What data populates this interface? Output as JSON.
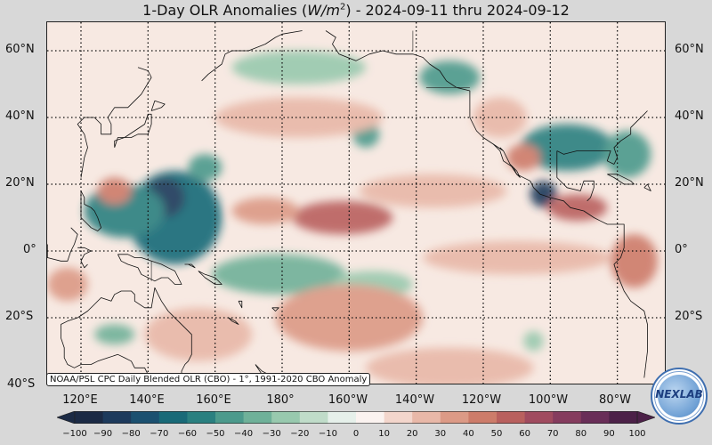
{
  "title": {
    "prefix": "1-Day OLR Anomalies (",
    "unit_base": "W/m",
    "unit_exp": "2",
    "suffix": ") - 2024-09-11 thru 2024-09-12"
  },
  "lat_labels": [
    "60°N",
    "40°N",
    "20°N",
    "0°",
    "20°S",
    "40°S"
  ],
  "lon_labels": [
    "120°E",
    "140°E",
    "160°E",
    "180°",
    "160°W",
    "140°W",
    "120°W",
    "100°W",
    "80°W"
  ],
  "credit": "NOAA/PSL CPC Daily Blended OLR (CBO) - 1°, 1991-2020 CBO Anomaly",
  "colorbar": {
    "ticks": [
      "−100",
      "−90",
      "−80",
      "−70",
      "−60",
      "−50",
      "−40",
      "−30",
      "−20",
      "−10",
      "0",
      "10",
      "20",
      "30",
      "40",
      "50",
      "60",
      "70",
      "80",
      "90",
      "100"
    ],
    "colors": [
      "#1b2a45",
      "#1d3a5c",
      "#1b5070",
      "#196a78",
      "#2a8080",
      "#4c9a8c",
      "#6fb199",
      "#98c9ae",
      "#c0dcc9",
      "#e6f0ea",
      "#fbf3f0",
      "#f3d6cc",
      "#e8b8a8",
      "#dc9a86",
      "#cd7c6a",
      "#b9605e",
      "#a04b5f",
      "#853c5e",
      "#692e58",
      "#4c2148"
    ],
    "min": -100,
    "max": 100
  },
  "map_extent": {
    "lon_min": 110,
    "lon_max": 290,
    "lat_min": -40,
    "lat_max": 67
  },
  "anomaly_features": [
    {
      "lon": 148,
      "lat": 10,
      "rx": 14,
      "ry": 14,
      "value": -70
    },
    {
      "lon": 145,
      "lat": 16,
      "rx": 6,
      "ry": 6,
      "value": -85
    },
    {
      "lon": 133,
      "lat": 12,
      "rx": 12,
      "ry": 8,
      "value": -55
    },
    {
      "lon": 157,
      "lat": 25,
      "rx": 5,
      "ry": 4,
      "value": -50
    },
    {
      "lon": 179,
      "lat": -7,
      "rx": 20,
      "ry": 6,
      "value": -35
    },
    {
      "lon": 207,
      "lat": -10,
      "rx": 12,
      "ry": 4,
      "value": -30
    },
    {
      "lon": 185,
      "lat": 55,
      "rx": 20,
      "ry": 5,
      "value": -30
    },
    {
      "lon": 230,
      "lat": 52,
      "rx": 9,
      "ry": 5,
      "value": -50
    },
    {
      "lon": 205,
      "lat": 35,
      "rx": 4,
      "ry": 4,
      "value": -50
    },
    {
      "lon": 265,
      "lat": 31,
      "rx": 14,
      "ry": 7,
      "value": -60
    },
    {
      "lon": 283,
      "lat": 29,
      "rx": 7,
      "ry": 7,
      "value": -50
    },
    {
      "lon": 258,
      "lat": 17,
      "rx": 4,
      "ry": 4,
      "value": -85
    },
    {
      "lon": 130,
      "lat": -25,
      "rx": 6,
      "ry": 3,
      "value": -40
    },
    {
      "lon": 255,
      "lat": -27,
      "rx": 3,
      "ry": 3,
      "value": -30
    },
    {
      "lon": 198,
      "lat": 10,
      "rx": 15,
      "ry": 5,
      "value": 55
    },
    {
      "lon": 175,
      "lat": 12,
      "rx": 10,
      "ry": 4,
      "value": 35
    },
    {
      "lon": 200,
      "lat": -20,
      "rx": 22,
      "ry": 10,
      "value": 30
    },
    {
      "lon": 155,
      "lat": -25,
      "rx": 16,
      "ry": 8,
      "value": 25
    },
    {
      "lon": 130,
      "lat": 18,
      "rx": 5,
      "ry": 4,
      "value": 45
    },
    {
      "lon": 225,
      "lat": 18,
      "rx": 22,
      "ry": 5,
      "value": 25
    },
    {
      "lon": 250,
      "lat": -2,
      "rx": 28,
      "ry": 5,
      "value": 20
    },
    {
      "lon": 268,
      "lat": 13,
      "rx": 9,
      "ry": 4,
      "value": 55
    },
    {
      "lon": 285,
      "lat": -3,
      "rx": 7,
      "ry": 8,
      "value": 40
    },
    {
      "lon": 252,
      "lat": 28,
      "rx": 5,
      "ry": 4,
      "value": 45
    },
    {
      "lon": 185,
      "lat": 40,
      "rx": 25,
      "ry": 6,
      "value": 20
    },
    {
      "lon": 245,
      "lat": 40,
      "rx": 8,
      "ry": 6,
      "value": 25
    },
    {
      "lon": 230,
      "lat": -35,
      "rx": 25,
      "ry": 6,
      "value": 20
    },
    {
      "lon": 116,
      "lat": -10,
      "rx": 6,
      "ry": 5,
      "value": 30
    }
  ],
  "coastlines": [
    [
      [
        120,
        22
      ],
      [
        121,
        28
      ],
      [
        122,
        31
      ],
      [
        121,
        35
      ],
      [
        119,
        38
      ],
      [
        121,
        40
      ],
      [
        124,
        40
      ],
      [
        126,
        38
      ],
      [
        126,
        35
      ],
      [
        129,
        35
      ],
      [
        129,
        38
      ],
      [
        128,
        40
      ],
      [
        130,
        43
      ],
      [
        134,
        43
      ],
      [
        138,
        47
      ],
      [
        141,
        52
      ],
      [
        140,
        54
      ],
      [
        137,
        55
      ]
    ],
    [
      [
        130,
        31
      ],
      [
        131,
        34
      ],
      [
        135,
        34
      ],
      [
        137,
        35
      ],
      [
        140,
        35
      ],
      [
        141,
        38
      ],
      [
        141,
        41
      ],
      [
        140,
        41
      ],
      [
        139,
        38
      ],
      [
        136,
        36
      ],
      [
        133,
        34
      ],
      [
        130,
        33
      ],
      [
        130,
        31
      ]
    ],
    [
      [
        141,
        42
      ],
      [
        144,
        43
      ],
      [
        145,
        44
      ],
      [
        142,
        45
      ],
      [
        141,
        42
      ]
    ],
    [
      [
        156,
        51
      ],
      [
        158,
        53
      ],
      [
        162,
        56
      ],
      [
        163,
        59
      ],
      [
        165,
        60
      ],
      [
        170,
        60
      ],
      [
        175,
        62
      ],
      [
        178,
        64
      ],
      [
        180,
        65
      ],
      [
        186,
        66
      ]
    ],
    [
      [
        193,
        66
      ],
      [
        196,
        64
      ],
      [
        195,
        62
      ],
      [
        197,
        59
      ],
      [
        202,
        57
      ],
      [
        206,
        59
      ],
      [
        210,
        60
      ],
      [
        214,
        59
      ],
      [
        219,
        59
      ],
      [
        222,
        58
      ],
      [
        224,
        56
      ],
      [
        227,
        54
      ],
      [
        229,
        51
      ],
      [
        232,
        49
      ],
      [
        236,
        48
      ],
      [
        236,
        43
      ],
      [
        236,
        40
      ],
      [
        238,
        36
      ],
      [
        240,
        34
      ],
      [
        243,
        32
      ],
      [
        245,
        30
      ],
      [
        246,
        27
      ],
      [
        249,
        25
      ],
      [
        250,
        23
      ],
      [
        254,
        21
      ],
      [
        255,
        19
      ],
      [
        257,
        17
      ],
      [
        260,
        16
      ],
      [
        264,
        15
      ],
      [
        266,
        13
      ],
      [
        270,
        12
      ],
      [
        273,
        10
      ],
      [
        275,
        9
      ],
      [
        277,
        8
      ],
      [
        280,
        8
      ],
      [
        282,
        8
      ],
      [
        282,
        4
      ],
      [
        282,
        1
      ],
      [
        281,
        -2
      ],
      [
        279,
        -4
      ],
      [
        280,
        -7
      ],
      [
        282,
        -12
      ],
      [
        284,
        -15
      ],
      [
        288,
        -18
      ],
      [
        289,
        -22
      ],
      [
        289,
        -30
      ],
      [
        288,
        -38
      ]
    ],
    [
      [
        243,
        32
      ],
      [
        246,
        30
      ],
      [
        248,
        26
      ],
      [
        250,
        24
      ],
      [
        251,
        22
      ],
      [
        250,
        23
      ],
      [
        248,
        26
      ],
      [
        246,
        30
      ],
      [
        245,
        31
      ]
    ],
    [
      [
        262,
        30
      ],
      [
        264,
        29
      ],
      [
        268,
        30
      ],
      [
        271,
        30
      ],
      [
        275,
        30
      ],
      [
        278,
        30
      ],
      [
        277,
        27
      ],
      [
        279,
        26
      ],
      [
        280,
        28
      ],
      [
        279,
        31
      ],
      [
        281,
        33
      ],
      [
        284,
        35
      ],
      [
        284,
        37
      ],
      [
        286,
        39
      ],
      [
        288,
        41
      ],
      [
        289,
        42
      ]
    ],
    [
      [
        262,
        30
      ],
      [
        262,
        26
      ],
      [
        262,
        22
      ],
      [
        265,
        19
      ],
      [
        269,
        18
      ],
      [
        270,
        21
      ],
      [
        273,
        21
      ],
      [
        273,
        19
      ],
      [
        272,
        16
      ],
      [
        271,
        15
      ]
    ],
    [
      [
        277,
        23
      ],
      [
        280,
        23
      ],
      [
        284,
        21
      ],
      [
        285,
        20
      ],
      [
        282,
        20
      ],
      [
        279,
        22
      ],
      [
        277,
        23
      ]
    ],
    [
      [
        288,
        19
      ],
      [
        289,
        20
      ],
      [
        290,
        18
      ],
      [
        288,
        19
      ]
    ],
    [
      [
        120,
        18
      ],
      [
        121,
        16
      ],
      [
        121,
        14
      ],
      [
        123,
        13
      ],
      [
        124,
        12
      ],
      [
        125,
        10
      ],
      [
        126,
        7
      ],
      [
        125,
        6
      ],
      [
        123,
        7
      ],
      [
        122,
        8
      ],
      [
        120,
        10
      ],
      [
        120,
        14
      ],
      [
        120,
        18
      ]
    ],
    [
      [
        117,
        7
      ],
      [
        119,
        5
      ],
      [
        118,
        2
      ],
      [
        117,
        0
      ],
      [
        116,
        -3
      ],
      [
        114,
        -3
      ],
      [
        110,
        -2
      ],
      [
        110,
        2
      ]
    ],
    [
      [
        119,
        1
      ],
      [
        121,
        1
      ],
      [
        123,
        0
      ],
      [
        121,
        -1
      ],
      [
        120,
        -3
      ],
      [
        121,
        -5
      ],
      [
        122,
        -4
      ]
    ],
    [
      [
        131,
        -1
      ],
      [
        134,
        -1
      ],
      [
        136,
        -2
      ],
      [
        138,
        -2
      ],
      [
        141,
        -3
      ],
      [
        144,
        -4
      ],
      [
        146,
        -5
      ],
      [
        148,
        -6
      ],
      [
        150,
        -10
      ],
      [
        148,
        -10
      ],
      [
        146,
        -8
      ],
      [
        144,
        -8
      ],
      [
        142,
        -9
      ],
      [
        140,
        -8
      ],
      [
        138,
        -7
      ],
      [
        137,
        -5
      ],
      [
        134,
        -4
      ],
      [
        132,
        -3
      ],
      [
        131,
        -1
      ]
    ],
    [
      [
        152,
        -4
      ],
      [
        154,
        -5
      ],
      [
        153,
        -4
      ],
      [
        151,
        -4
      ],
      [
        152,
        -4
      ]
    ],
    [
      [
        155,
        -6
      ],
      [
        157,
        -7
      ],
      [
        160,
        -8
      ],
      [
        162,
        -10
      ],
      [
        160,
        -10
      ],
      [
        157,
        -8
      ],
      [
        155,
        -6
      ]
    ],
    [
      [
        167,
        -15
      ],
      [
        168,
        -17
      ],
      [
        168,
        -15
      ],
      [
        167,
        -15
      ]
    ],
    [
      [
        164,
        -20
      ],
      [
        166,
        -21
      ],
      [
        167,
        -22
      ],
      [
        165,
        -21
      ],
      [
        164,
        -20
      ]
    ],
    [
      [
        177,
        -17
      ],
      [
        179,
        -17
      ],
      [
        178,
        -18
      ],
      [
        177,
        -17
      ]
    ],
    [
      [
        114,
        -22
      ],
      [
        116,
        -21
      ],
      [
        119,
        -20
      ],
      [
        122,
        -18
      ],
      [
        124,
        -16
      ],
      [
        126,
        -14
      ],
      [
        129,
        -15
      ],
      [
        130,
        -13
      ],
      [
        132,
        -12
      ],
      [
        135,
        -12
      ],
      [
        136,
        -13
      ],
      [
        136,
        -15
      ],
      [
        139,
        -17
      ],
      [
        141,
        -17
      ],
      [
        142,
        -11
      ],
      [
        143,
        -13
      ],
      [
        144,
        -15
      ],
      [
        146,
        -18
      ],
      [
        147,
        -19
      ],
      [
        149,
        -21
      ],
      [
        151,
        -23
      ],
      [
        153,
        -25
      ],
      [
        153,
        -28
      ],
      [
        153,
        -31
      ],
      [
        152,
        -33
      ],
      [
        151,
        -34
      ],
      [
        150,
        -36
      ],
      [
        150,
        -37
      ],
      [
        148,
        -38
      ],
      [
        146,
        -39
      ],
      [
        144,
        -38
      ],
      [
        142,
        -38
      ],
      [
        140,
        -37
      ],
      [
        139,
        -35
      ],
      [
        138,
        -35
      ],
      [
        136,
        -35
      ],
      [
        135,
        -33
      ],
      [
        133,
        -32
      ],
      [
        131,
        -31
      ],
      [
        128,
        -32
      ],
      [
        125,
        -33
      ],
      [
        123,
        -34
      ],
      [
        120,
        -34
      ],
      [
        118,
        -35
      ],
      [
        116,
        -34
      ],
      [
        115,
        -32
      ],
      [
        115,
        -29
      ],
      [
        114,
        -26
      ],
      [
        114,
        -22
      ]
    ],
    [
      [
        144,
        -41
      ],
      [
        146,
        -41
      ],
      [
        148,
        -41
      ],
      [
        148,
        -43
      ],
      [
        146,
        -43
      ],
      [
        145,
        -42
      ],
      [
        144,
        -41
      ]
    ],
    [
      [
        172,
        -34
      ],
      [
        174,
        -36
      ],
      [
        176,
        -37
      ],
      [
        178,
        -38
      ],
      [
        177,
        -39
      ],
      [
        175,
        -40
      ],
      [
        174,
        -39
      ],
      [
        174,
        -37
      ],
      [
        172,
        -34
      ]
    ]
  ],
  "borders": [
    [
      [
        219,
        60
      ],
      [
        219,
        66
      ]
    ],
    [
      [
        223,
        49
      ],
      [
        236,
        49
      ]
    ],
    [
      [
        141,
        -3
      ],
      [
        141,
        -9
      ]
    ]
  ]
}
